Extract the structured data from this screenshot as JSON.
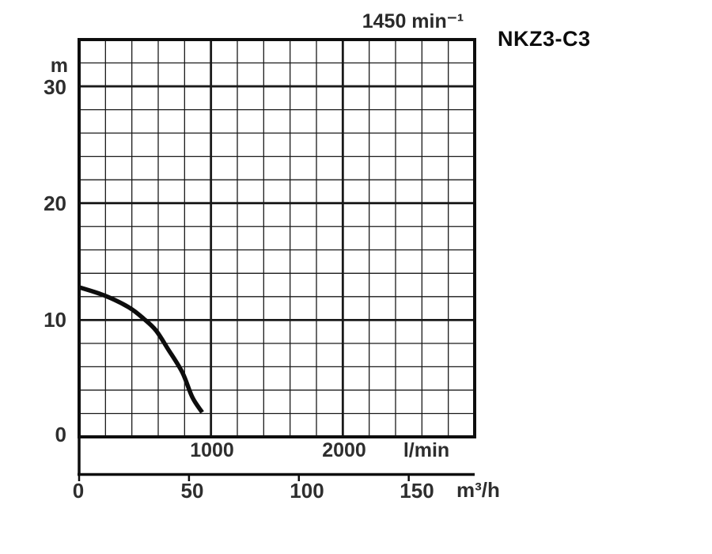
{
  "page": {
    "background": "#ffffff"
  },
  "chart_data": {
    "type": "line",
    "title": "NKZ3-C3",
    "speed_label": "1450 min⁻¹",
    "y_axis": {
      "unit": "m",
      "range": [
        0,
        34
      ],
      "minor_step": 2,
      "major_step": 10,
      "ticks": [
        "30",
        "20",
        "10",
        "0"
      ],
      "tick_values": [
        30,
        20,
        10,
        0
      ]
    },
    "x_axis_lmin": {
      "unit": "l/min",
      "range": [
        0,
        3000
      ],
      "minor_step": 200,
      "major_step": 1000,
      "ticks": [
        "1000",
        "2000"
      ],
      "tick_values": [
        1000,
        2000
      ]
    },
    "x_axis_m3h": {
      "unit": "m³/h",
      "range": [
        0,
        180
      ],
      "ticks": [
        "0",
        "50",
        "100",
        "150"
      ],
      "tick_values": [
        0,
        50,
        100,
        150
      ]
    },
    "grid": {
      "line_color": "#1a1a1a",
      "border_color": "#0e0e0e"
    },
    "series": [
      {
        "name": "head-curve",
        "color": "#0d0d0d",
        "points_q_m3h_h_m": [
          [
            0,
            12.8
          ],
          [
            11.5,
            12.1
          ],
          [
            22.5,
            11.1
          ],
          [
            29.5,
            10.1
          ],
          [
            35,
            9.1
          ],
          [
            40.5,
            7.5
          ],
          [
            47,
            5.5
          ],
          [
            51.5,
            3.4
          ],
          [
            56,
            2.1
          ]
        ]
      }
    ]
  }
}
